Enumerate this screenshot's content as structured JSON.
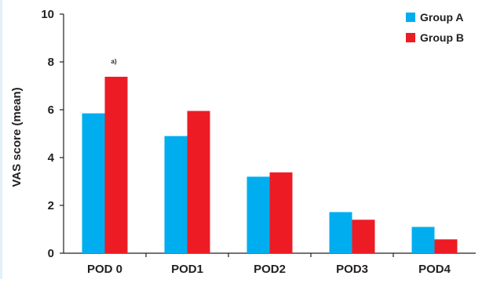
{
  "chart_data": {
    "type": "bar",
    "title": "",
    "xlabel": "",
    "ylabel": "VAS score (mean)",
    "categories": [
      "POD 0",
      "POD1",
      "POD2",
      "POD3",
      "POD4"
    ],
    "series": [
      {
        "name": "Group A",
        "color": "#00aeef",
        "values": [
          5.85,
          4.9,
          3.2,
          1.72,
          1.1
        ]
      },
      {
        "name": "Group B",
        "color": "#ed1c24",
        "values": [
          7.38,
          5.95,
          3.38,
          1.4,
          0.58
        ]
      }
    ],
    "ylim": [
      0,
      10
    ],
    "yticks": [
      "0",
      "2",
      "4",
      "6",
      "8",
      "10"
    ],
    "grid": false,
    "legend": "top-right",
    "annotations": [
      {
        "text": "a)",
        "category": "POD 0",
        "series": "Group B"
      }
    ]
  }
}
